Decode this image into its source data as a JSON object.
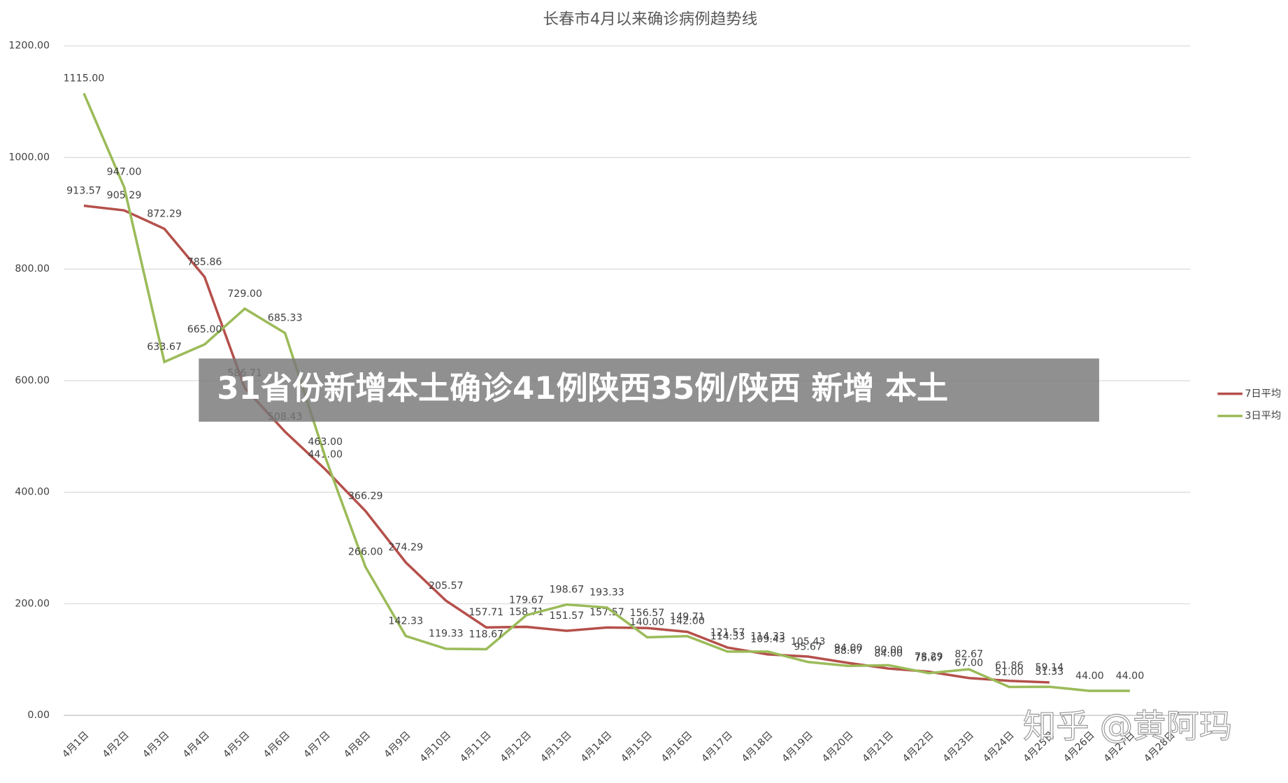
{
  "chart_data": {
    "type": "line",
    "title": "长春市4月以来确诊病例趋势线",
    "categories": [
      "4月1日",
      "4月2日",
      "4月3日",
      "4月4日",
      "4月5日",
      "4月6日",
      "4月7日",
      "4月8日",
      "4月9日",
      "4月10日",
      "4月11日",
      "4月12日",
      "4月13日",
      "4月14日",
      "4月15日",
      "4月16日",
      "4月17日",
      "4月18日",
      "4月19日",
      "4月20日",
      "4月21日",
      "4月22日",
      "4月23日",
      "4月24日",
      "4月25日",
      "4月26日",
      "4月27日",
      "4月28日"
    ],
    "series": [
      {
        "name": "7日平均",
        "color": "#b5504b",
        "values": [
          913.57,
          905.29,
          872.29,
          785.86,
          586.71,
          508.43,
          441.0,
          366.29,
          274.29,
          205.57,
          157.71,
          158.71,
          151.57,
          157.57,
          156.57,
          149.71,
          121.57,
          109.43,
          105.43,
          94.0,
          84.0,
          78.29,
          67.0,
          61.86,
          59.14,
          null,
          null,
          null
        ],
        "value_labels": [
          "913.57",
          "905.29",
          "872.29",
          "785.86",
          "586.71",
          "508.43",
          "441.00",
          "366.29",
          "274.29",
          "205.57",
          "157.71",
          "158.71",
          "151.57",
          "157.57",
          "156.57",
          "149.71",
          "121.57",
          "109.43",
          "105.43",
          "94.00",
          "84.00",
          "78.29",
          "67.00",
          "61.86",
          "59.14",
          null,
          null,
          null
        ]
      },
      {
        "name": "3日平均",
        "color": "#9bbb59",
        "values": [
          1115.0,
          947.0,
          633.67,
          665.0,
          729.0,
          685.33,
          463.0,
          266.0,
          142.33,
          119.33,
          118.67,
          179.67,
          198.67,
          193.33,
          140.0,
          142.0,
          114.33,
          114.33,
          95.67,
          88.67,
          90.0,
          75.67,
          82.67,
          51.0,
          51.33,
          44.0,
          44.0,
          null
        ],
        "value_labels": [
          "1115.00",
          "947.00",
          "633.67",
          "665.00",
          "729.00",
          "685.33",
          "463.00",
          "266.00",
          "142.33",
          "119.33",
          "118.67",
          "179.67",
          "198.67",
          "193.33",
          "140.00",
          "142.00",
          "114.33",
          "114.33",
          "95.67",
          "88.67",
          "90.00",
          "75.67",
          "82.67",
          "51.00",
          "51.33",
          "44.00",
          "44.00",
          null
        ]
      }
    ],
    "ylim": [
      0,
      1200
    ],
    "yticks": [
      {
        "value": 0,
        "label": "0.00"
      },
      {
        "value": 200,
        "label": "200.00"
      },
      {
        "value": 400,
        "label": "400.00"
      },
      {
        "value": 600,
        "label": "600.00"
      },
      {
        "value": 800,
        "label": "800.00"
      },
      {
        "value": 1000,
        "label": "1000.00"
      },
      {
        "value": 1200,
        "label": "1200.00"
      }
    ],
    "grid": true,
    "legend": "right"
  },
  "overlay": {
    "banner": "31省份新增本土确诊41例陕西35例/陕西 新增 本土",
    "watermark": "知乎 @黄阿玛"
  }
}
